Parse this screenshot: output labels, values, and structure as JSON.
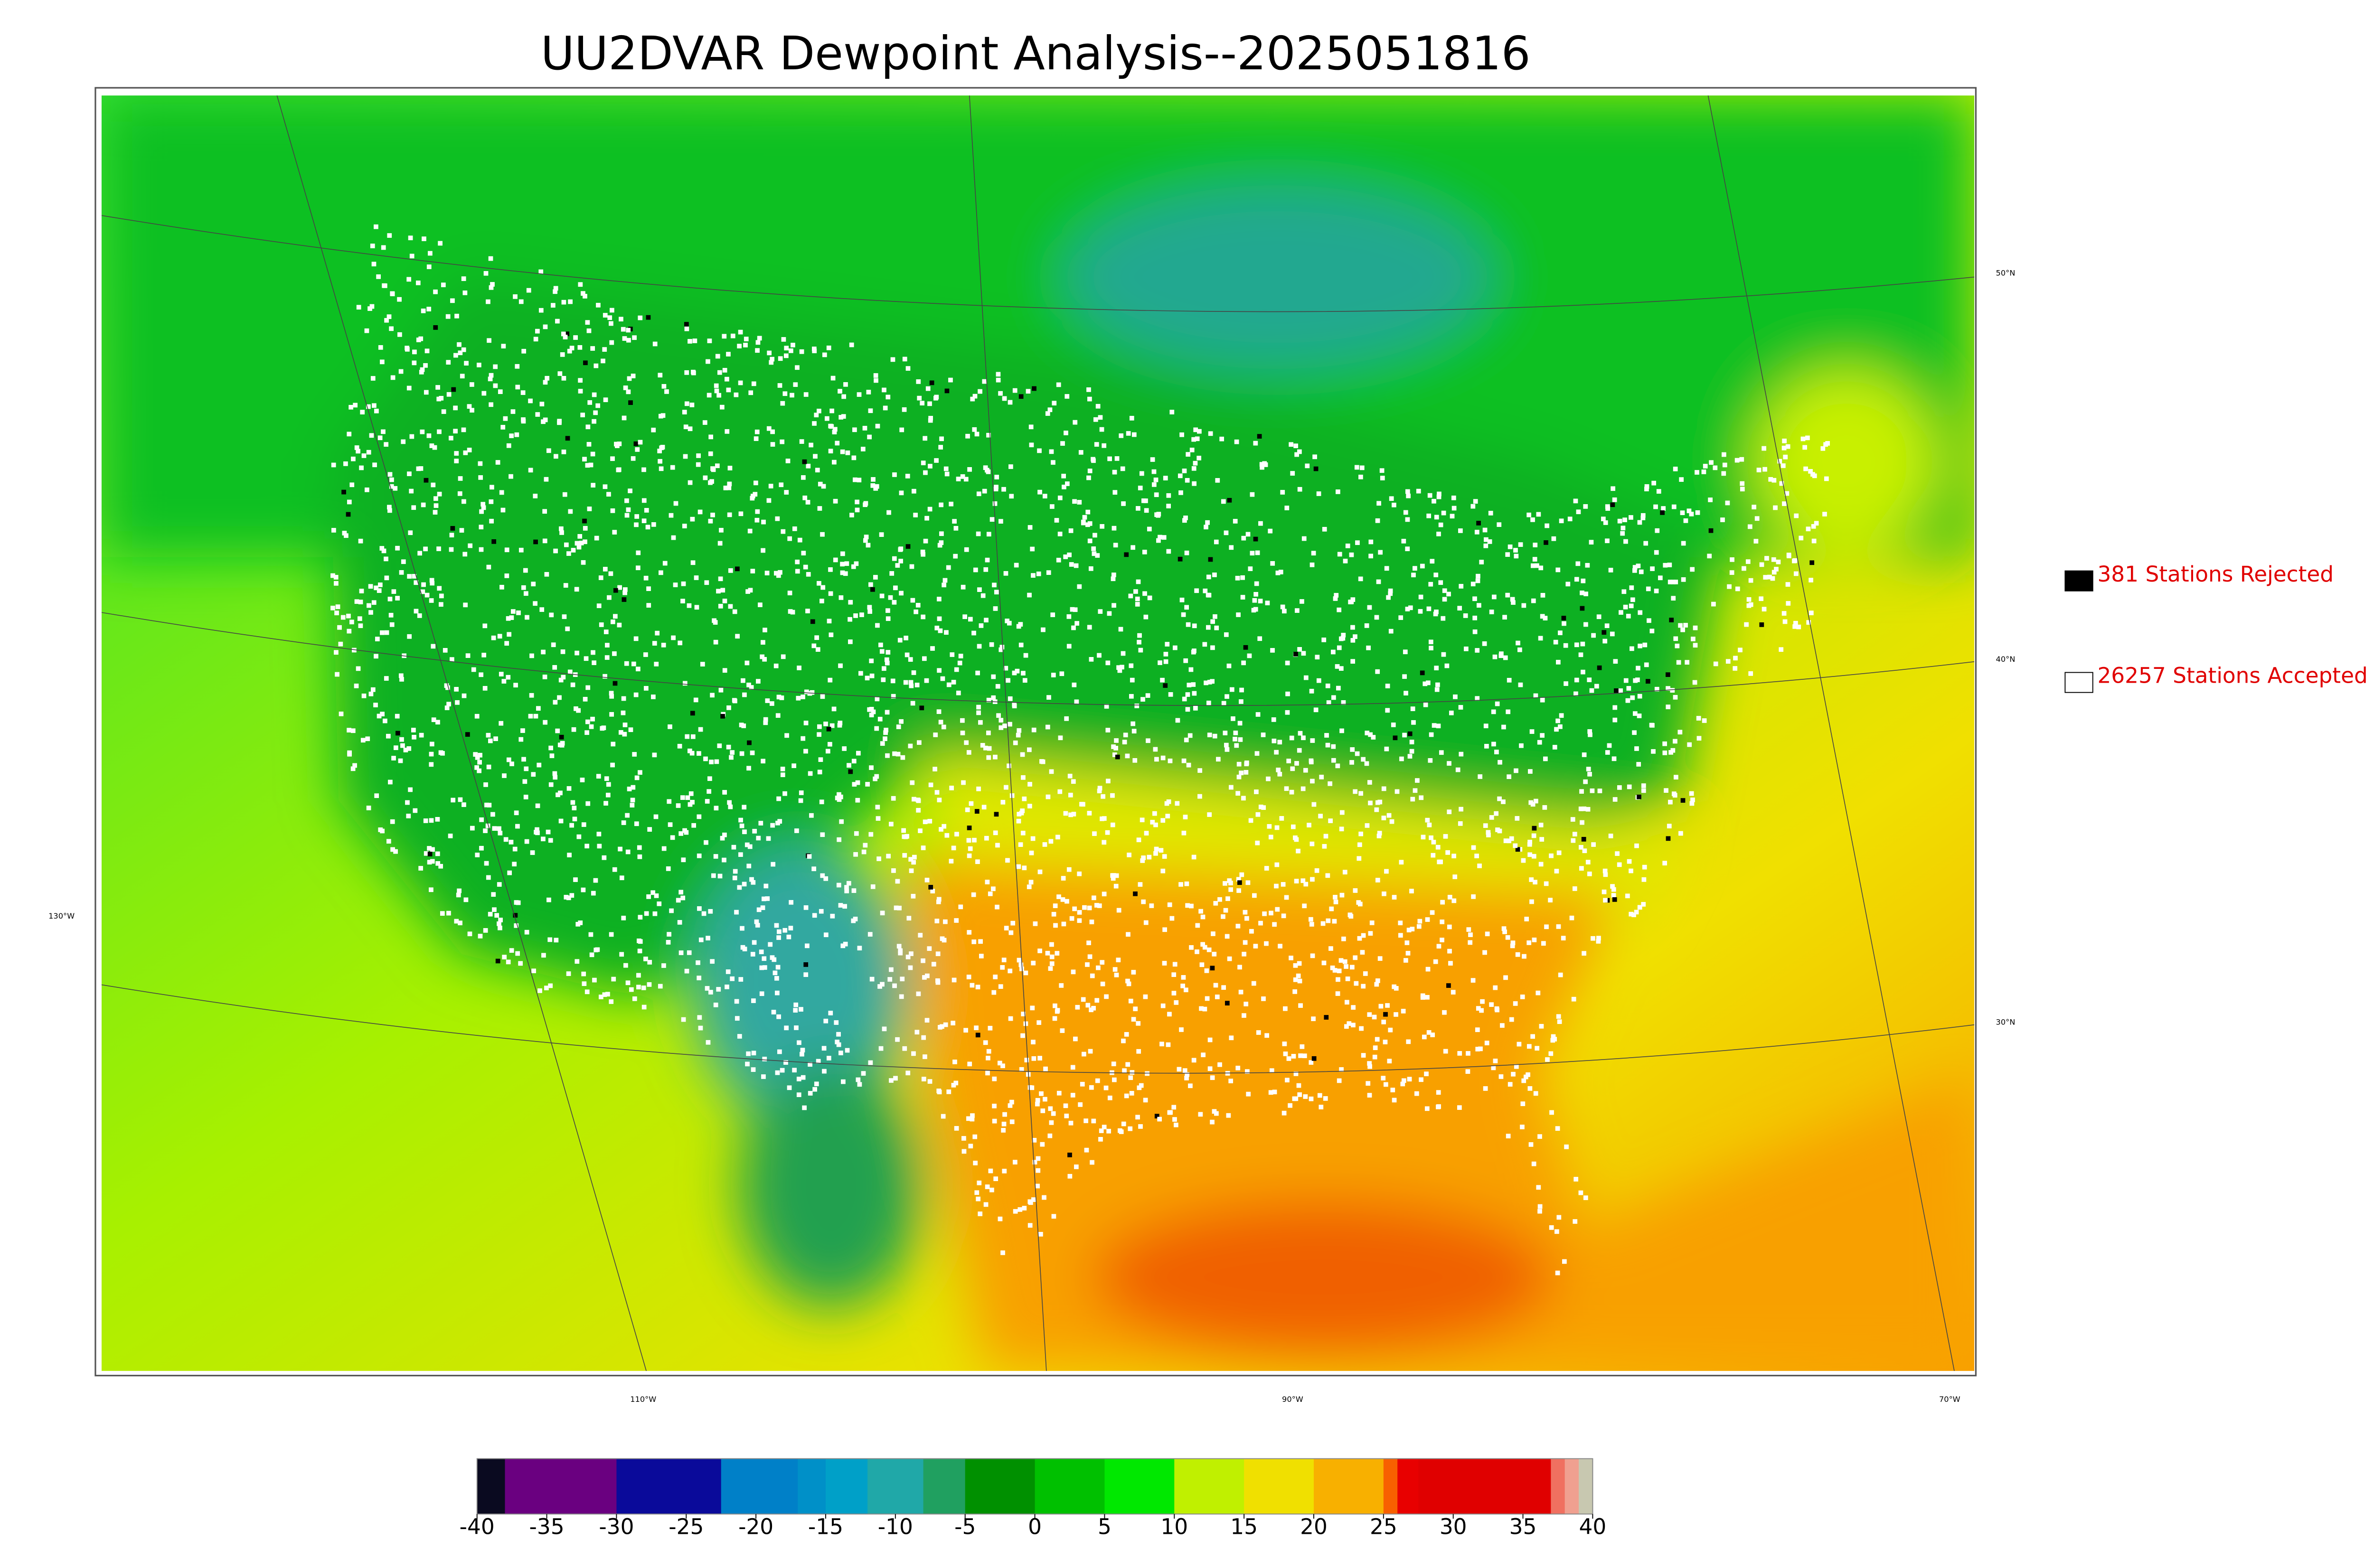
{
  "title": "UU2DVAR Dewpoint Analysis--2025051816",
  "legend": [
    {
      "label": "381 Stations Rejected",
      "color": "#000000"
    },
    {
      "label": "26257 Stations Accepted",
      "color": "#ffffff"
    }
  ],
  "graticule": {
    "lat_labels": [
      "50°N",
      "40°N",
      "30°N"
    ],
    "lon_labels": [
      "130°W",
      "110°W",
      "90°W",
      "70°W"
    ]
  },
  "colorbar": {
    "lim": [
      -40,
      40
    ],
    "ticks": [
      -40,
      -35,
      -30,
      -25,
      -20,
      -15,
      -10,
      -5,
      0,
      5,
      10,
      15,
      20,
      25,
      30,
      35,
      40
    ],
    "bins": [
      -40,
      -38,
      -30,
      -22.5,
      -17,
      -15,
      -12,
      -8,
      -5,
      0,
      5,
      10,
      15,
      20,
      25,
      26,
      27.5,
      37,
      38,
      39,
      40
    ],
    "colors": [
      "#0a0a20",
      "#6a0080",
      "#0a0a9a",
      "#0080c8",
      "#0090c8",
      "#00a0c8",
      "#20a8a8",
      "#20a060",
      "#009000",
      "#00c000",
      "#00e800",
      "#c0f000",
      "#f0e000",
      "#f8b000",
      "#f86000",
      "#e80000",
      "#e00000",
      "#f07060",
      "#f0a090",
      "#c8c8b0"
    ]
  }
}
